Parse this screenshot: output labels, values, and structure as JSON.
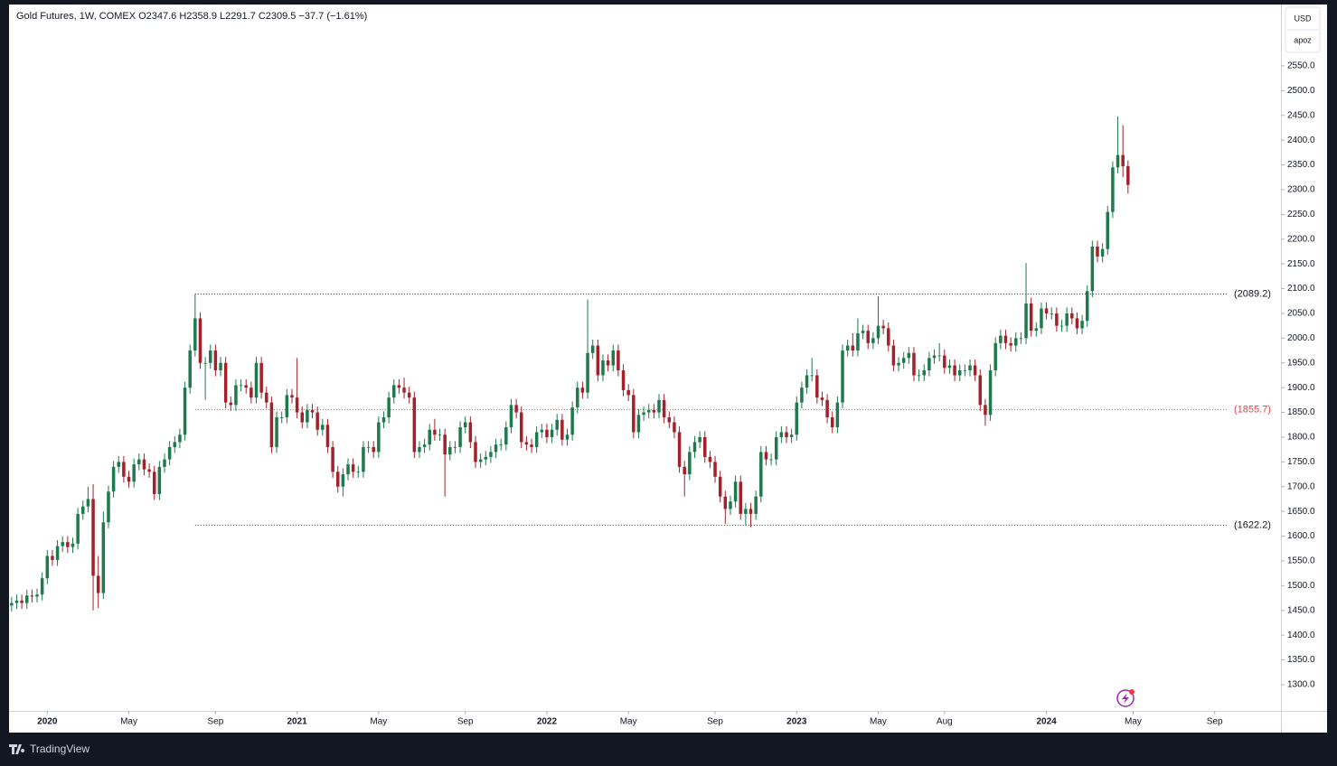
{
  "chart_data": {
    "type": "candlestick",
    "title": "Gold Futures, 1W, COMEX  O2347.6  H2358.9  L2291.7  C2309.5  −37.7 (−1.61%)",
    "currency": "USD",
    "scale_mode": "apoz",
    "brand": "TradingView",
    "up_color": "#1e7a4c",
    "down_color": "#a3212b",
    "xlim": [
      -0.5,
      249
    ],
    "ylim": [
      1247,
      2674
    ],
    "xticks": [
      {
        "value": 7,
        "label": "2020"
      },
      {
        "value": 23,
        "label": "May"
      },
      {
        "value": 40,
        "label": "Sep"
      },
      {
        "value": 56,
        "label": "2021"
      },
      {
        "value": 72,
        "label": "May"
      },
      {
        "value": 89,
        "label": "Sep"
      },
      {
        "value": 105,
        "label": "2022"
      },
      {
        "value": 121,
        "label": "May"
      },
      {
        "value": 138,
        "label": "Sep"
      },
      {
        "value": 154,
        "label": "2023"
      },
      {
        "value": 170,
        "label": "May"
      },
      {
        "value": 183,
        "label": "Aug"
      },
      {
        "value": 203,
        "label": "2024"
      },
      {
        "value": 220,
        "label": "May"
      },
      {
        "value": 236,
        "label": "Sep"
      }
    ],
    "yticks": [
      {
        "value": 1300,
        "label": "1300.0"
      },
      {
        "value": 1350,
        "label": "1350.0"
      },
      {
        "value": 1400,
        "label": "1400.0"
      },
      {
        "value": 1450,
        "label": "1450.0"
      },
      {
        "value": 1500,
        "label": "1500.0"
      },
      {
        "value": 1550,
        "label": "1550.0"
      },
      {
        "value": 1600,
        "label": "1600.0"
      },
      {
        "value": 1650,
        "label": "1650.0"
      },
      {
        "value": 1700,
        "label": "1700.0"
      },
      {
        "value": 1750,
        "label": "1750.0"
      },
      {
        "value": 1800,
        "label": "1800.0"
      },
      {
        "value": 1850,
        "label": "1850.0"
      },
      {
        "value": 1900,
        "label": "1900.0"
      },
      {
        "value": 1950,
        "label": "1950.0"
      },
      {
        "value": 2000,
        "label": "2000.0"
      },
      {
        "value": 2050,
        "label": "2050.0"
      },
      {
        "value": 2100,
        "label": "2100.0"
      },
      {
        "value": 2150,
        "label": "2150.0"
      },
      {
        "value": 2200,
        "label": "2200.0"
      },
      {
        "value": 2250,
        "label": "2250.0"
      },
      {
        "value": 2300,
        "label": "2300.0"
      },
      {
        "value": 2350,
        "label": "2350.0"
      },
      {
        "value": 2400,
        "label": "2400.0"
      },
      {
        "value": 2450,
        "label": "2450.0"
      },
      {
        "value": 2500,
        "label": "2500.0"
      },
      {
        "value": 2550,
        "label": "2550.0"
      }
    ],
    "levels": [
      {
        "value": 2089.2,
        "label": "(2089.2)",
        "color": "#333333",
        "x_start": 36
      },
      {
        "value": 1855.7,
        "label": "(1855.7)",
        "color": "#e0404a",
        "x_start": 36
      },
      {
        "value": 1622.2,
        "label": "(1622.2)",
        "color": "#333333",
        "x_start": 36
      }
    ],
    "open": [
      1460,
      1465,
      1470,
      1465,
      1480,
      1478,
      1482,
      1515,
      1560,
      1552,
      1580,
      1588,
      1578,
      1585,
      1645,
      1660,
      1675,
      1520,
      1485,
      1628,
      1690,
      1740,
      1750,
      1720,
      1710,
      1745,
      1755,
      1735,
      1730,
      1685,
      1740,
      1755,
      1780,
      1790,
      1805,
      1900,
      1975,
      2040,
      1950,
      1950,
      1975,
      1935,
      1950,
      1870,
      1865,
      1905,
      1905,
      1900,
      1880,
      1950,
      1890,
      1870,
      1780,
      1840,
      1840,
      1885,
      1880,
      1850,
      1830,
      1855,
      1850,
      1815,
      1825,
      1780,
      1730,
      1700,
      1725,
      1745,
      1730,
      1730,
      1780,
      1780,
      1770,
      1830,
      1840,
      1880,
      1905,
      1900,
      1890,
      1880,
      1770,
      1780,
      1785,
      1815,
      1805,
      1805,
      1765,
      1780,
      1780,
      1820,
      1830,
      1790,
      1750,
      1755,
      1760,
      1770,
      1785,
      1785,
      1820,
      1865,
      1850,
      1790,
      1785,
      1780,
      1810,
      1815,
      1800,
      1815,
      1835,
      1795,
      1805,
      1860,
      1900,
      1890,
      1970,
      1985,
      1925,
      1955,
      1945,
      1975,
      1935,
      1895,
      1885,
      1810,
      1845,
      1850,
      1855,
      1850,
      1875,
      1840,
      1830,
      1810,
      1740,
      1725,
      1770,
      1790,
      1800,
      1760,
      1750,
      1720,
      1680,
      1655,
      1670,
      1710,
      1645,
      1655,
      1645,
      1680,
      1770,
      1755,
      1755,
      1800,
      1810,
      1800,
      1805,
      1870,
      1900,
      1925,
      1925,
      1880,
      1875,
      1840,
      1820,
      1870,
      1975,
      1985,
      1975,
      2010,
      2015,
      1990,
      2000,
      2025,
      2020,
      1985,
      1945,
      1950,
      1960,
      1970,
      1925,
      1925,
      1935,
      1960,
      1965,
      1965,
      1940,
      1945,
      1925,
      1935,
      1935,
      1945,
      1925,
      1865,
      1845,
      1935,
      1990,
      2005,
      1990,
      1985,
      2000,
      2000,
      2070,
      2015,
      2020,
      2060,
      2050,
      2050,
      2025,
      2025,
      2050,
      2040,
      2020,
      2035,
      2095,
      2185,
      2165,
      2180,
      2255,
      2345,
      2370,
      2347.6
    ],
    "high": [
      1477,
      1482,
      1482,
      1492,
      1492,
      1494,
      1527,
      1572,
      1572,
      1592,
      1600,
      1600,
      1597,
      1657,
      1672,
      1700,
      1705,
      1560,
      1650,
      1702,
      1752,
      1762,
      1762,
      1732,
      1757,
      1767,
      1767,
      1747,
      1742,
      1752,
      1767,
      1792,
      1802,
      1817,
      1912,
      1987,
      2089,
      2052,
      1962,
      1987,
      1987,
      1962,
      1962,
      1882,
      1917,
      1917,
      1917,
      1912,
      1962,
      1962,
      1902,
      1882,
      1852,
      1852,
      1897,
      1897,
      1960,
      1862,
      1867,
      1867,
      1862,
      1837,
      1837,
      1792,
      1742,
      1737,
      1757,
      1757,
      1742,
      1792,
      1792,
      1792,
      1842,
      1852,
      1892,
      1917,
      1917,
      1920,
      1902,
      1892,
      1792,
      1797,
      1827,
      1837,
      1817,
      1817,
      1792,
      1792,
      1832,
      1842,
      1842,
      1802,
      1767,
      1772,
      1782,
      1797,
      1797,
      1832,
      1877,
      1877,
      1862,
      1802,
      1797,
      1822,
      1827,
      1827,
      1827,
      1847,
      1847,
      1817,
      1872,
      1912,
      1912,
      2078,
      1997,
      1997,
      1967,
      1967,
      1987,
      1987,
      1947,
      1907,
      1897,
      1857,
      1862,
      1867,
      1867,
      1887,
      1887,
      1852,
      1842,
      1822,
      1752,
      1782,
      1802,
      1812,
      1812,
      1772,
      1762,
      1732,
      1692,
      1682,
      1722,
      1722,
      1667,
      1667,
      1692,
      1782,
      1782,
      1767,
      1812,
      1822,
      1822,
      1817,
      1882,
      1912,
      1937,
      1960,
      1937,
      1892,
      1887,
      1852,
      1882,
      1987,
      1997,
      2010,
      2040,
      2027,
      2027,
      2012,
      2085,
      2037,
      2032,
      1997,
      1962,
      1972,
      1982,
      1982,
      1937,
      1947,
      1972,
      1977,
      1990,
      1977,
      1957,
      1957,
      1947,
      1947,
      1957,
      1957,
      1937,
      1877,
      1947,
      2002,
      2017,
      2017,
      2002,
      2012,
      2012,
      2152,
      2082,
      2032,
      2072,
      2072,
      2062,
      2062,
      2037,
      2062,
      2062,
      2052,
      2047,
      2107,
      2197,
      2197,
      2192,
      2267,
      2357,
      2448,
      2430,
      2358.9
    ],
    "low": [
      1448,
      1453,
      1453,
      1453,
      1466,
      1466,
      1470,
      1503,
      1540,
      1540,
      1568,
      1566,
      1566,
      1573,
      1633,
      1648,
      1450,
      1455,
      1473,
      1616,
      1678,
      1728,
      1708,
      1698,
      1698,
      1733,
      1723,
      1718,
      1673,
      1673,
      1728,
      1743,
      1768,
      1778,
      1793,
      1888,
      1963,
      1938,
      1875,
      1938,
      1923,
      1923,
      1858,
      1853,
      1853,
      1893,
      1888,
      1868,
      1868,
      1878,
      1858,
      1768,
      1768,
      1828,
      1828,
      1868,
      1838,
      1818,
      1818,
      1838,
      1803,
      1803,
      1768,
      1718,
      1688,
      1680,
      1713,
      1718,
      1718,
      1718,
      1768,
      1758,
      1758,
      1818,
      1828,
      1868,
      1888,
      1878,
      1868,
      1758,
      1758,
      1768,
      1773,
      1793,
      1793,
      1680,
      1753,
      1768,
      1768,
      1808,
      1778,
      1738,
      1738,
      1743,
      1748,
      1758,
      1773,
      1773,
      1808,
      1838,
      1778,
      1773,
      1768,
      1768,
      1798,
      1788,
      1788,
      1803,
      1783,
      1783,
      1793,
      1848,
      1878,
      1878,
      1958,
      1913,
      1913,
      1933,
      1933,
      1923,
      1883,
      1873,
      1798,
      1798,
      1833,
      1838,
      1838,
      1838,
      1828,
      1818,
      1798,
      1728,
      1680,
      1713,
      1758,
      1778,
      1748,
      1738,
      1708,
      1668,
      1625,
      1643,
      1658,
      1633,
      1622,
      1618,
      1633,
      1668,
      1743,
      1743,
      1743,
      1788,
      1788,
      1788,
      1793,
      1858,
      1888,
      1913,
      1868,
      1863,
      1828,
      1808,
      1808,
      1858,
      1963,
      1963,
      1963,
      1998,
      1978,
      1978,
      1988,
      2008,
      1973,
      1933,
      1933,
      1938,
      1948,
      1913,
      1913,
      1913,
      1923,
      1948,
      1953,
      1928,
      1928,
      1913,
      1913,
      1923,
      1923,
      1913,
      1853,
      1823,
      1833,
      1923,
      1978,
      1978,
      1973,
      1973,
      1988,
      1988,
      2003,
      2003,
      2008,
      2038,
      2038,
      2013,
      2013,
      2013,
      2028,
      2008,
      2008,
      2023,
      2083,
      2153,
      2153,
      2168,
      2243,
      2333,
      2325,
      2291.7
    ],
    "close": [
      1465,
      1470,
      1465,
      1480,
      1478,
      1482,
      1515,
      1560,
      1552,
      1580,
      1588,
      1578,
      1585,
      1645,
      1660,
      1675,
      1520,
      1485,
      1628,
      1690,
      1740,
      1750,
      1720,
      1710,
      1745,
      1755,
      1735,
      1730,
      1685,
      1740,
      1755,
      1780,
      1790,
      1805,
      1900,
      1975,
      2040,
      1950,
      1950,
      1975,
      1935,
      1950,
      1870,
      1865,
      1905,
      1905,
      1900,
      1880,
      1950,
      1890,
      1870,
      1780,
      1840,
      1840,
      1885,
      1880,
      1850,
      1830,
      1855,
      1850,
      1815,
      1825,
      1780,
      1730,
      1700,
      1725,
      1745,
      1730,
      1730,
      1780,
      1780,
      1770,
      1830,
      1840,
      1880,
      1905,
      1900,
      1890,
      1880,
      1770,
      1780,
      1785,
      1815,
      1805,
      1805,
      1765,
      1780,
      1780,
      1820,
      1830,
      1790,
      1750,
      1755,
      1760,
      1770,
      1785,
      1785,
      1820,
      1865,
      1850,
      1790,
      1785,
      1780,
      1810,
      1815,
      1800,
      1815,
      1835,
      1795,
      1805,
      1860,
      1900,
      1890,
      1970,
      1985,
      1925,
      1955,
      1945,
      1975,
      1935,
      1895,
      1885,
      1810,
      1845,
      1850,
      1855,
      1850,
      1875,
      1840,
      1830,
      1810,
      1740,
      1725,
      1770,
      1790,
      1800,
      1760,
      1750,
      1720,
      1680,
      1655,
      1670,
      1710,
      1645,
      1655,
      1645,
      1680,
      1770,
      1755,
      1755,
      1800,
      1810,
      1800,
      1805,
      1870,
      1900,
      1925,
      1925,
      1880,
      1875,
      1840,
      1820,
      1870,
      1975,
      1985,
      1975,
      2010,
      2015,
      1990,
      2000,
      2025,
      2020,
      1985,
      1945,
      1950,
      1960,
      1970,
      1925,
      1925,
      1935,
      1960,
      1965,
      1965,
      1940,
      1945,
      1925,
      1935,
      1935,
      1945,
      1925,
      1865,
      1845,
      1935,
      1990,
      2005,
      1990,
      1985,
      2000,
      2000,
      2070,
      2015,
      2020,
      2060,
      2050,
      2050,
      2025,
      2025,
      2050,
      2040,
      2020,
      2035,
      2095,
      2185,
      2165,
      2180,
      2255,
      2345,
      2370,
      2347.2,
      2309.5
    ]
  }
}
